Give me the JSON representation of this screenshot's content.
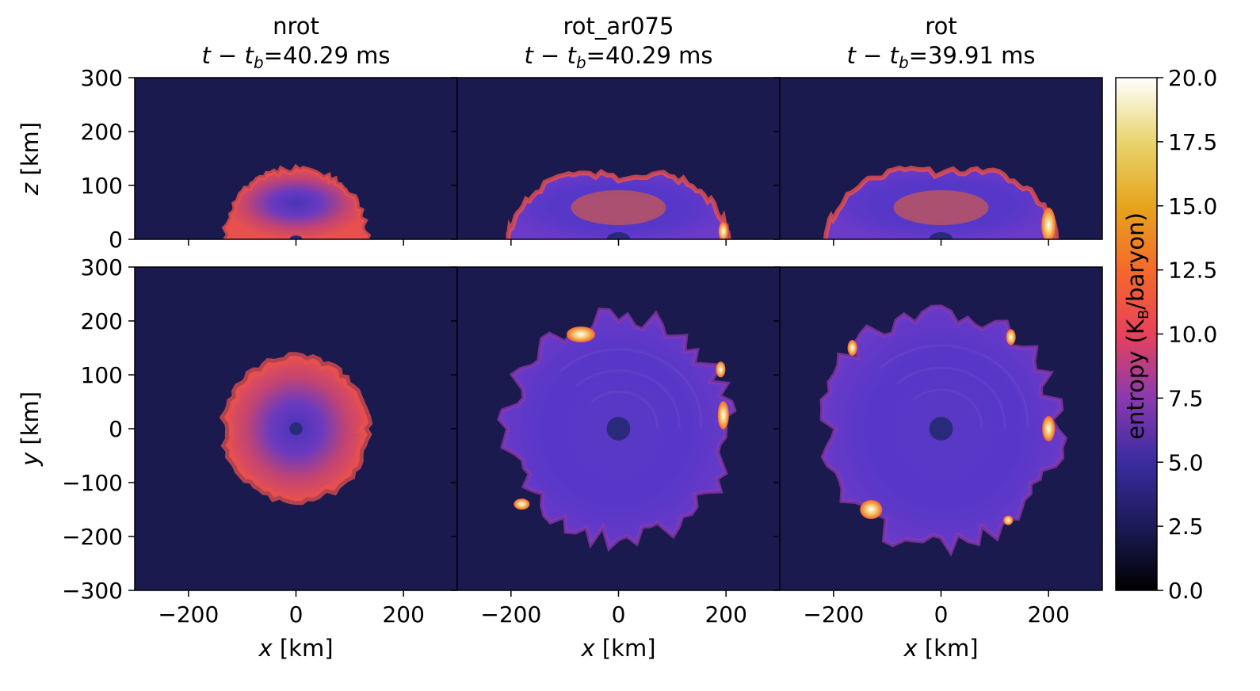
{
  "chart_data": {
    "type": "heatmap",
    "columns": [
      {
        "title": "nrot",
        "time_prefix": "t − t",
        "time_sub": "b",
        "time_value": "=40.29 ms"
      },
      {
        "title": "rot_ar075",
        "time_prefix": "t − t",
        "time_sub": "b",
        "time_value": "=40.29 ms"
      },
      {
        "title": "rot",
        "time_prefix": "t − t",
        "time_sub": "b",
        "time_value": "=39.91 ms"
      }
    ],
    "xlabel": {
      "var": "x",
      "unit": " [km]"
    },
    "ylabel_top": {
      "var": "z",
      "unit": " [km]"
    },
    "ylabel_bottom": {
      "var": "y",
      "unit": " [km]"
    },
    "xlim": [
      -300,
      300
    ],
    "ylim_top": [
      0,
      300
    ],
    "ylim_bottom": [
      -300,
      300
    ],
    "xticks": [
      -200,
      0,
      200
    ],
    "xtick_labels": [
      "−200",
      "0",
      "200"
    ],
    "yticks_top": [
      0,
      100,
      200,
      300
    ],
    "yticks_top_labels": [
      "0",
      "100",
      "200",
      "300"
    ],
    "yticks_bottom": [
      -300,
      -200,
      -100,
      0,
      100,
      200,
      300
    ],
    "yticks_bottom_labels": [
      "−300",
      "−200",
      "−100",
      "0",
      "100",
      "200",
      "300"
    ],
    "colorbar": {
      "label_main": "entropy (K",
      "label_sub": "B",
      "label_end": "/baryon)",
      "range": [
        0,
        20
      ],
      "ticks": [
        0,
        2.5,
        5,
        7.5,
        10,
        12.5,
        15,
        17.5,
        20
      ],
      "tick_labels": [
        "0.0",
        "2.5",
        "5.0",
        "7.5",
        "10.0",
        "12.5",
        "15.0",
        "17.5",
        "20.0"
      ],
      "colormap": "CMRmap"
    },
    "panels": {
      "nrot": {
        "shock_radius_km": 130,
        "pns_radius_km": 12,
        "entropy_background": 2.0,
        "entropy_inner": 5.0,
        "entropy_shell": 8.5
      },
      "rot_ar075": {
        "shock_radius_km": 205,
        "pns_radius_km": 22,
        "entropy_background": 2.0,
        "entropy_inner": 5.5,
        "entropy_shell": 6.5
      },
      "rot": {
        "shock_radius_km": 215,
        "pns_radius_km": 22,
        "entropy_background": 2.0,
        "entropy_inner": 5.5,
        "entropy_shell": 6.5
      }
    }
  }
}
